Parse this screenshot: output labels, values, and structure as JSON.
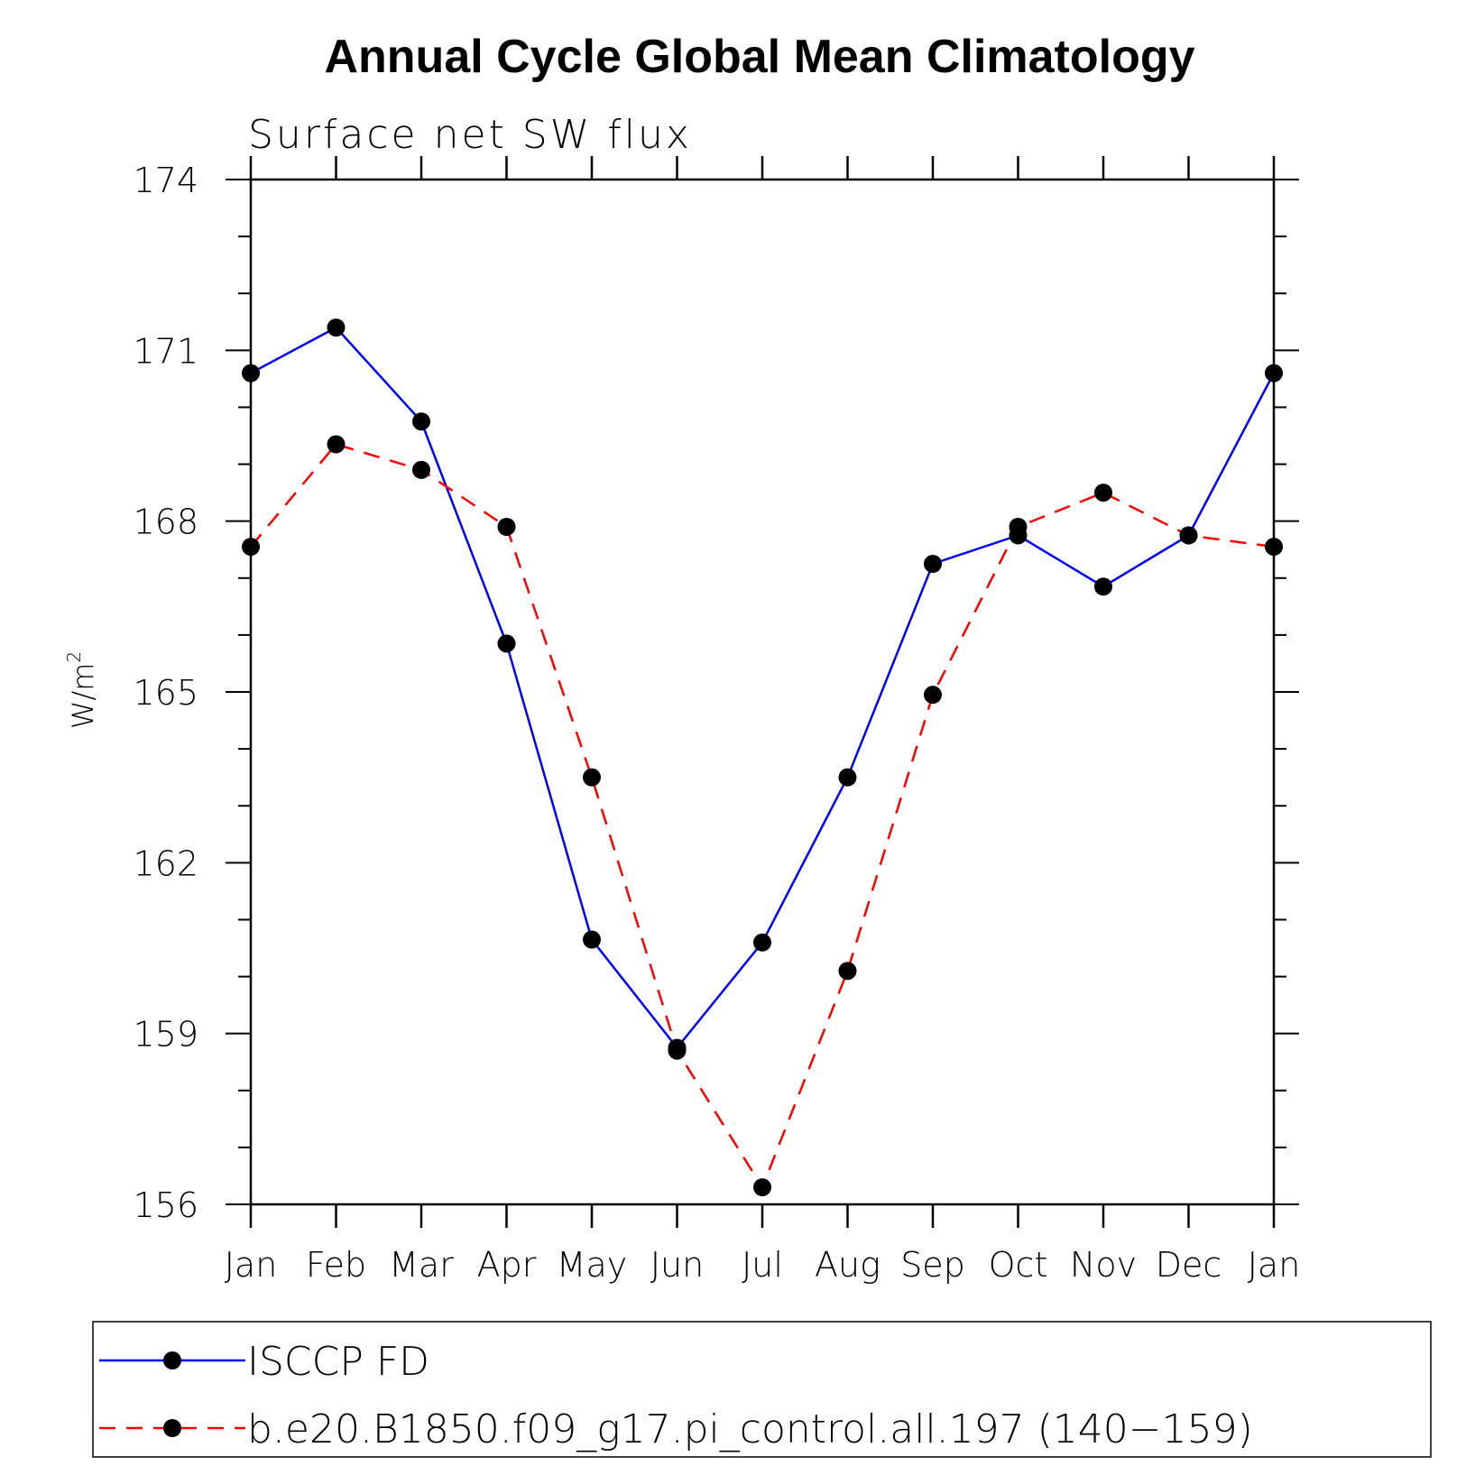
{
  "chart_data": {
    "type": "line",
    "title": "Annual Cycle Global Mean Climatology",
    "subtitle": "Surface net SW flux",
    "ylabel": "W/m",
    "ylabel_sup": "2",
    "xlabel": "",
    "categories": [
      "Jan",
      "Feb",
      "Mar",
      "Apr",
      "May",
      "Jun",
      "Jul",
      "Aug",
      "Sep",
      "Oct",
      "Nov",
      "Dec",
      "Jan"
    ],
    "ylim": [
      156,
      174
    ],
    "yticks": [
      "156",
      "159",
      "162",
      "165",
      "168",
      "171",
      "174"
    ],
    "grid": false,
    "legend_position": "bottom",
    "series": [
      {
        "name": "ISCCP FD",
        "color": "#0000ff",
        "dash": "solid",
        "values": [
          170.6,
          171.4,
          169.75,
          165.85,
          160.65,
          158.75,
          160.6,
          163.5,
          167.25,
          167.75,
          166.85,
          167.75,
          170.6
        ]
      },
      {
        "name": "b.e20.B1850.f09_g17.pi_control.all.197 (140−159)",
        "color": "#ff0000",
        "dash": "dashed",
        "values": [
          167.55,
          169.35,
          168.9,
          167.9,
          163.5,
          158.7,
          156.3,
          160.1,
          164.95,
          167.9,
          168.5,
          167.75,
          167.55
        ]
      }
    ]
  }
}
